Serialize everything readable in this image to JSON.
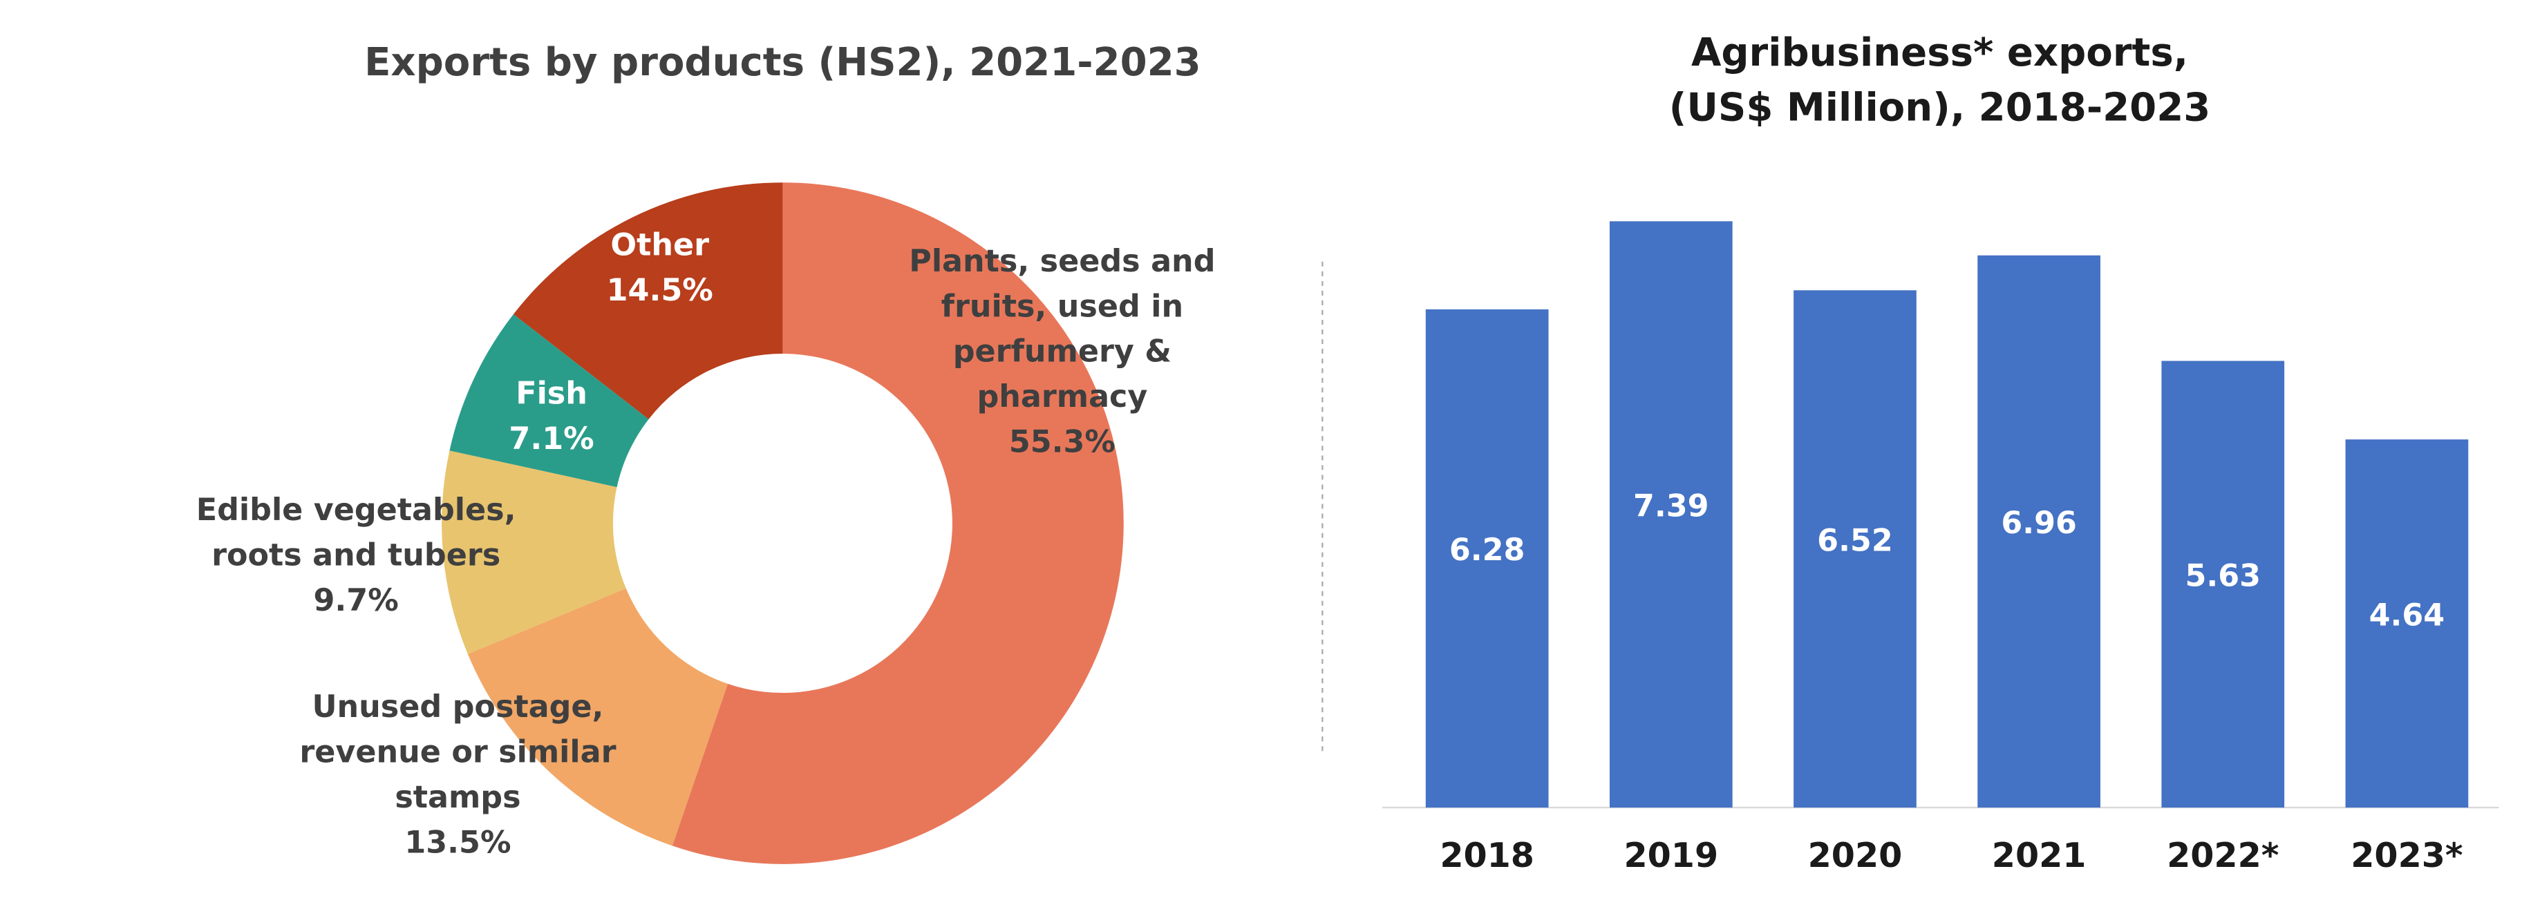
{
  "chart_data": [
    {
      "type": "donut",
      "title": "Exports by products (HS2), 2021-2023",
      "categories": [
        "Plants, seeds and fruits, used in perfumery & pharmacy",
        "Unused postage, revenue or similar stamps",
        "Edible vegetables, roots and tubers",
        "Fish",
        "Other"
      ],
      "values": [
        55.3,
        13.5,
        9.7,
        7.1,
        14.5
      ],
      "value_labels": [
        "55.3%",
        "13.5%",
        "9.7%",
        "7.1%",
        "14.5%"
      ],
      "colors": [
        "#e8775a",
        "#f2a766",
        "#e8c46e",
        "#2a9d8a",
        "#b83e1c"
      ]
    },
    {
      "type": "bar",
      "title": [
        "Agribusiness* exports,",
        "(US$ Million), 2018-2023"
      ],
      "categories": [
        "2018",
        "2019",
        "2020",
        "2021",
        "2022*",
        "2023*"
      ],
      "values": [
        6.28,
        7.39,
        6.52,
        6.96,
        5.63,
        4.64
      ],
      "color": "#4472c4"
    }
  ]
}
